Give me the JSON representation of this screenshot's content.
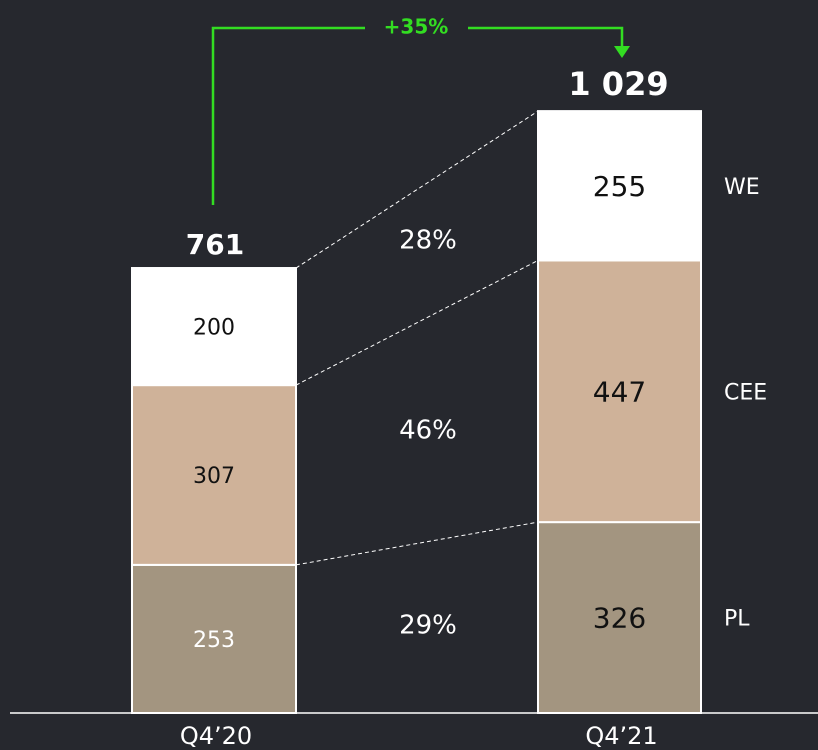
{
  "chart_data": {
    "type": "stacked_bar",
    "categories": [
      "Q4’20",
      "Q4’21"
    ],
    "series": [
      {
        "name": "PL",
        "color": "#a39580",
        "values": [
          253,
          326
        ]
      },
      {
        "name": "CEE",
        "color": "#cfb299",
        "values": [
          307,
          447
        ]
      },
      {
        "name": "WE",
        "color": "#ffffff",
        "values": [
          200,
          255
        ]
      }
    ],
    "totals": {
      "values": [
        761,
        1029
      ],
      "value_labels": [
        "761",
        "1 029"
      ]
    },
    "shares": {
      "values": [
        29,
        46,
        28
      ],
      "value_labels": [
        "29%",
        "46%",
        "28%"
      ]
    },
    "growth": {
      "value": 35,
      "label": "+35%",
      "color": "#33dd22"
    }
  }
}
